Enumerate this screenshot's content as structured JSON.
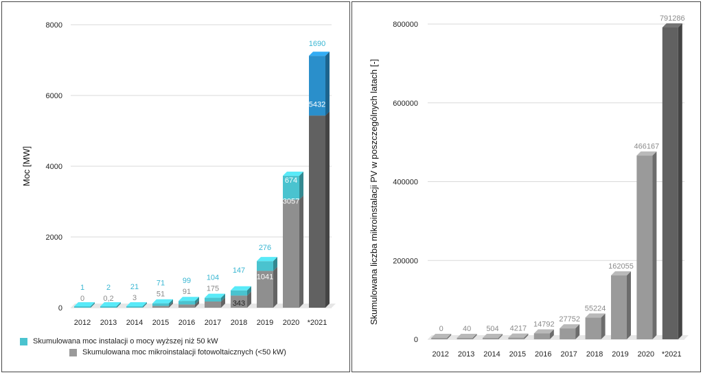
{
  "colors": {
    "teal": "#4ac3cf",
    "blue": "#2a8fcb",
    "gray_light": "#9a9a9a",
    "gray_mid": "#8f8f8f",
    "gray_dark": "#616161",
    "label_teal": "#38b6d2",
    "label_gray": "#8a8a8a"
  },
  "chart_data": [
    {
      "type": "bar",
      "stacked": true,
      "categories": [
        "2012",
        "2013",
        "2014",
        "2015",
        "2016",
        "2017",
        "2018",
        "2019",
        "2020",
        "*2021"
      ],
      "ylabel": "Moc [MW]",
      "ylim": [
        0,
        8000
      ],
      "yticks": [
        "0",
        "2000",
        "4000",
        "6000",
        "8000"
      ],
      "grid": true,
      "legend_position": "bottom-left",
      "series": [
        {
          "name": "Skumulowana moc mikroinstalacji fotowoltaicznych (<50 kW)",
          "values": [
            0,
            0.2,
            3,
            51,
            91,
            175,
            343,
            1041,
            3057,
            5432
          ],
          "labels": [
            "0",
            "0,2",
            "3",
            "51",
            "91",
            "175",
            "343",
            "1041",
            "3057",
            "5432"
          ]
        },
        {
          "name": "Skumulowana moc instalacji o mocy wyższej niż 50 kW",
          "values": [
            1,
            2,
            21,
            71,
            99,
            104,
            147,
            276,
            674,
            1690
          ],
          "labels": [
            "1",
            "2",
            "21",
            "71",
            "99",
            "104",
            "147",
            "276",
            "674",
            "1690"
          ]
        }
      ]
    },
    {
      "type": "bar",
      "categories": [
        "2012",
        "2013",
        "2014",
        "2015",
        "2016",
        "2017",
        "2018",
        "2019",
        "2020",
        "*2021"
      ],
      "values": [
        0,
        40,
        504,
        4217,
        14792,
        27752,
        55224,
        162055,
        466167,
        791286
      ],
      "labels": [
        "0",
        "40",
        "504",
        "4217",
        "14792",
        "27752",
        "55224",
        "162055",
        "466167",
        "791286"
      ],
      "ylabel": "Skumulowana liczba mikroinstalacji PV w poszczególnych latach [-]",
      "ylim": [
        0,
        800000
      ],
      "yticks": [
        "0",
        "200000",
        "400000",
        "600000",
        "800000"
      ],
      "grid": true
    }
  ]
}
